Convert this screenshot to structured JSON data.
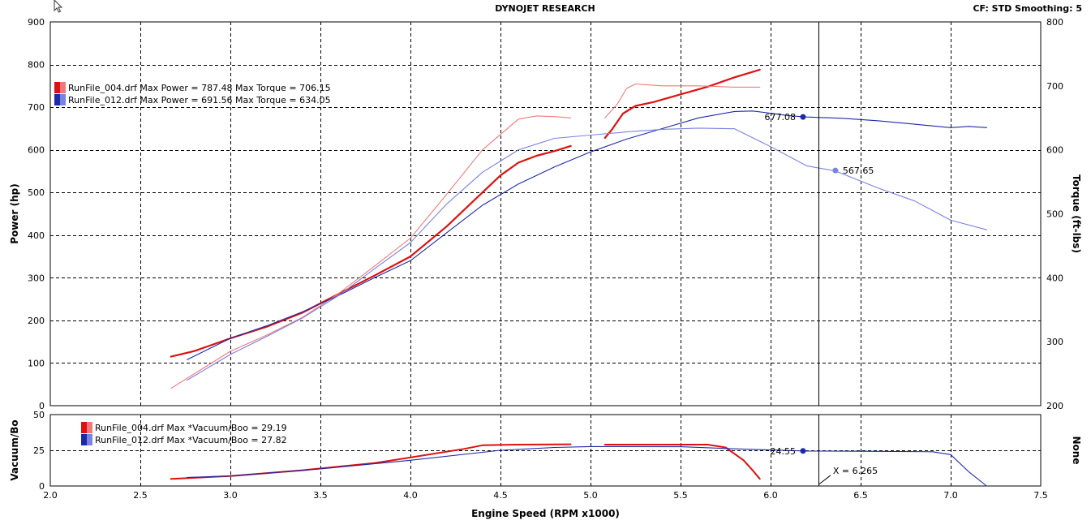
{
  "header": {
    "title": "DYNOJET RESEARCH",
    "status": "CF: STD  Smoothing: 5"
  },
  "colors": {
    "background": "#ffffff",
    "plot_bg": "#ffffff",
    "run1_power": "#dd1111",
    "run1_torque": "#f07a7a",
    "run2_power": "#1c2aa8",
    "run2_torque": "#7a82e2",
    "grid": "#000000",
    "cursor": "#000000"
  },
  "chart_data": [
    {
      "type": "line",
      "ylabel": "Power (hp)",
      "y2label": "Torque (ft-lbs)",
      "xlim": [
        2.0,
        7.5
      ],
      "ylim": [
        0,
        900
      ],
      "y2lim": [
        200,
        800
      ],
      "yticks": [
        "900",
        "800",
        "700",
        "600",
        "500",
        "400",
        "300",
        "200",
        "100",
        "0"
      ],
      "y2ticks": [
        "800",
        "700",
        "600",
        "500",
        "400",
        "300",
        "200"
      ],
      "grid": true,
      "legend": [
        {
          "name": "RunFile_004.drf",
          "text": "RunFile_004.drf Max Power = 787.48 Max Torque = 706.15"
        },
        {
          "name": "RunFile_012.drf",
          "text": "RunFile_012.drf Max Power = 691.56 Max Torque = 634.05"
        }
      ],
      "legend_placement": "top-left",
      "cursor_x": 6.265,
      "annotations": [
        {
          "text": "677.08",
          "x": 6.18,
          "y": 677.08,
          "axis": "y"
        },
        {
          "text": "567.65",
          "x": 6.36,
          "y": 567.65,
          "axis": "y"
        }
      ],
      "series": [
        {
          "name": "RunFile_004.drf Power",
          "axis": "y",
          "color_key": "run1_power",
          "segments": [
            [
              [
                2.67,
                115
              ],
              [
                2.8,
                128
              ],
              [
                3.0,
                158
              ],
              [
                3.2,
                185
              ],
              [
                3.4,
                218
              ],
              [
                3.6,
                262
              ],
              [
                3.8,
                305
              ],
              [
                4.0,
                350
              ],
              [
                4.2,
                420
              ],
              [
                4.4,
                500
              ],
              [
                4.5,
                540
              ],
              [
                4.6,
                570
              ],
              [
                4.7,
                586
              ],
              [
                4.8,
                597
              ],
              [
                4.89,
                609
              ]
            ],
            [
              [
                5.08,
                628
              ],
              [
                5.12,
                648
              ],
              [
                5.18,
                685
              ],
              [
                5.25,
                703
              ],
              [
                5.35,
                712
              ],
              [
                5.5,
                730
              ],
              [
                5.65,
                748
              ],
              [
                5.8,
                770
              ],
              [
                5.94,
                788
              ]
            ]
          ]
        },
        {
          "name": "RunFile_004.drf Torque",
          "axis": "y2",
          "color_key": "run1_torque",
          "segments": [
            [
              [
                2.67,
                227
              ],
              [
                3.0,
                285
              ],
              [
                3.2,
                310
              ],
              [
                3.4,
                338
              ],
              [
                3.6,
                375
              ],
              [
                3.8,
                418
              ],
              [
                4.0,
                462
              ],
              [
                4.2,
                530
              ],
              [
                4.4,
                600
              ],
              [
                4.6,
                648
              ],
              [
                4.7,
                653
              ],
              [
                4.8,
                652
              ],
              [
                4.89,
                650
              ]
            ],
            [
              [
                5.08,
                650
              ],
              [
                5.15,
                672
              ],
              [
                5.2,
                696
              ],
              [
                5.25,
                703
              ],
              [
                5.3,
                702
              ],
              [
                5.4,
                700
              ],
              [
                5.6,
                700
              ],
              [
                5.8,
                698
              ],
              [
                5.94,
                698
              ]
            ]
          ]
        },
        {
          "name": "RunFile_012.drf Power",
          "axis": "y",
          "color_key": "run2_power",
          "segments": [
            [
              [
                2.76,
                108
              ],
              [
                3.0,
                158
              ],
              [
                3.2,
                187
              ],
              [
                3.4,
                220
              ],
              [
                3.6,
                258
              ],
              [
                3.8,
                300
              ],
              [
                4.0,
                340
              ],
              [
                4.2,
                405
              ],
              [
                4.4,
                470
              ],
              [
                4.6,
                520
              ],
              [
                4.8,
                560
              ],
              [
                5.0,
                595
              ],
              [
                5.2,
                625
              ],
              [
                5.4,
                650
              ],
              [
                5.6,
                675
              ],
              [
                5.8,
                690
              ],
              [
                5.9,
                691
              ],
              [
                6.0,
                686
              ],
              [
                6.1,
                680
              ],
              [
                6.2,
                677
              ],
              [
                6.4,
                674
              ],
              [
                6.6,
                668
              ],
              [
                6.8,
                660
              ],
              [
                7.0,
                652
              ],
              [
                7.1,
                655
              ],
              [
                7.2,
                652
              ]
            ]
          ]
        },
        {
          "name": "RunFile_012.drf Torque",
          "axis": "y2",
          "color_key": "run2_torque",
          "segments": [
            [
              [
                2.76,
                240
              ],
              [
                3.0,
                280
              ],
              [
                3.2,
                308
              ],
              [
                3.4,
                337
              ],
              [
                3.6,
                372
              ],
              [
                3.8,
                414
              ],
              [
                4.0,
                455
              ],
              [
                4.2,
                515
              ],
              [
                4.4,
                565
              ],
              [
                4.6,
                600
              ],
              [
                4.8,
                618
              ],
              [
                5.0,
                623
              ],
              [
                5.2,
                628
              ],
              [
                5.4,
                632
              ],
              [
                5.6,
                634
              ],
              [
                5.8,
                633
              ],
              [
                6.0,
                605
              ],
              [
                6.2,
                575
              ],
              [
                6.36,
                567
              ],
              [
                6.6,
                540
              ],
              [
                6.8,
                520
              ],
              [
                7.0,
                490
              ],
              [
                7.2,
                475
              ]
            ]
          ]
        }
      ]
    },
    {
      "type": "line",
      "xlabel": "Engine Speed (RPM x1000)",
      "ylabel": "Vacuum/Bo",
      "y2label": "None",
      "xlim": [
        2.0,
        7.5
      ],
      "ylim": [
        0,
        50
      ],
      "yticks": [
        "50",
        "25",
        "0"
      ],
      "xticks": [
        "2.0",
        "2.5",
        "3.0",
        "3.5",
        "4.0",
        "4.5",
        "5.0",
        "5.5",
        "6.0",
        "6.5",
        "7.0",
        "7.5"
      ],
      "grid": true,
      "legend": [
        {
          "name": "RunFile_004.drf",
          "text": "RunFile_004.drf Max *Vacuum/Boo = 29.19"
        },
        {
          "name": "RunFile_012.drf",
          "text": "RunFile_012.drf Max *Vacuum/Boo = 27.82"
        }
      ],
      "legend_placement": "top-left",
      "annotations": [
        {
          "text": "24.55",
          "x": 6.18,
          "y": 24.55
        },
        {
          "text": "X = 6.265",
          "x": 6.265,
          "y": 8
        }
      ],
      "series": [
        {
          "name": "RunFile_004.drf *Vacuum/Boost",
          "color_key": "run1_power",
          "segments": [
            [
              [
                2.67,
                5
              ],
              [
                3.0,
                7
              ],
              [
                3.4,
                11
              ],
              [
                3.8,
                16
              ],
              [
                4.1,
                22
              ],
              [
                4.3,
                26
              ],
              [
                4.4,
                28.5
              ],
              [
                4.6,
                29
              ],
              [
                4.89,
                29.2
              ]
            ],
            [
              [
                5.08,
                29
              ],
              [
                5.4,
                29
              ],
              [
                5.65,
                29
              ],
              [
                5.75,
                27
              ],
              [
                5.85,
                18
              ],
              [
                5.9,
                11
              ],
              [
                5.94,
                5
              ]
            ]
          ]
        },
        {
          "name": "RunFile_012.drf *Vacuum/Boost",
          "color_key": "run2_power",
          "segments": [
            [
              [
                2.76,
                6
              ],
              [
                3.0,
                7
              ],
              [
                3.5,
                12
              ],
              [
                4.0,
                18
              ],
              [
                4.5,
                25
              ],
              [
                4.8,
                27
              ],
              [
                5.0,
                27.6
              ],
              [
                5.5,
                27.5
              ],
              [
                5.8,
                26
              ],
              [
                6.2,
                24.5
              ],
              [
                6.5,
                24.3
              ],
              [
                6.9,
                24
              ],
              [
                7.0,
                22
              ],
              [
                7.1,
                10
              ],
              [
                7.2,
                0
              ]
            ]
          ]
        }
      ]
    }
  ]
}
